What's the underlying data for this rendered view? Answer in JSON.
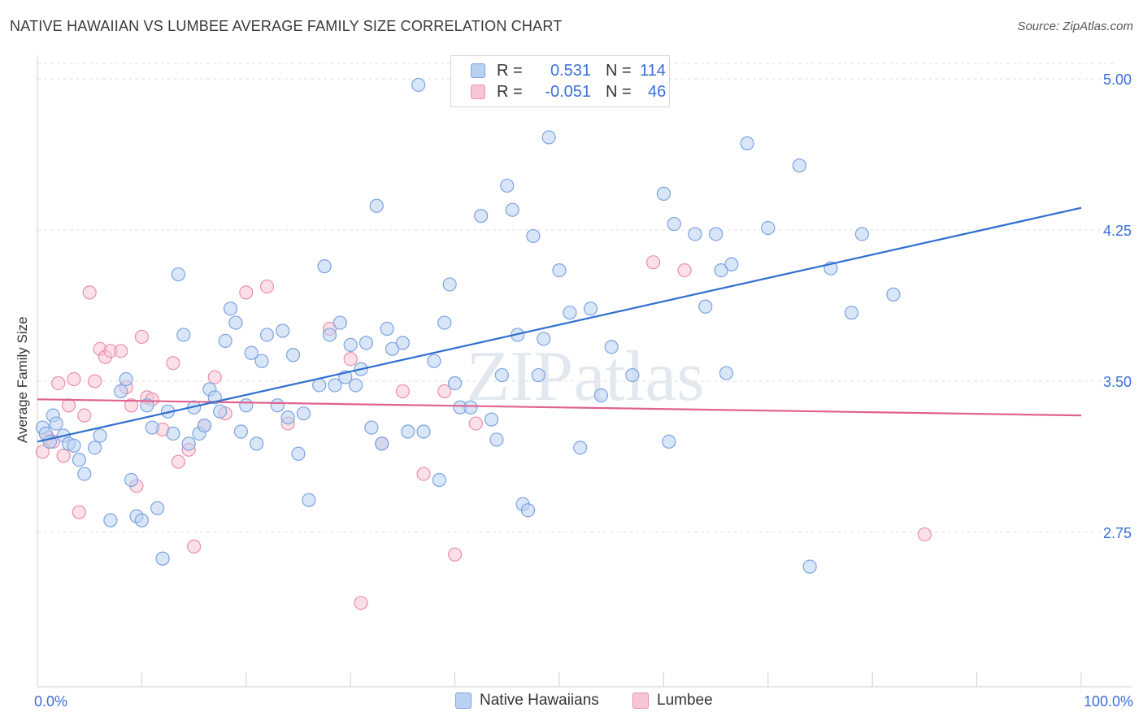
{
  "title": "NATIVE HAWAIIAN VS LUMBEE AVERAGE FAMILY SIZE CORRELATION CHART",
  "source": "Source: ZipAtlas.com",
  "watermark": "ZIPatlas",
  "legend": {
    "rows": [
      {
        "r_label": "R =",
        "r_value": "0.531",
        "n_label": "N =",
        "n_value": "114"
      },
      {
        "r_label": "R =",
        "r_value": "-0.051",
        "n_label": "N =",
        "n_value": "46"
      }
    ]
  },
  "colors": {
    "blue_fill": "#b9d1f3",
    "blue_stroke": "#7ba3e0",
    "blue_line": "#2f6fd0",
    "pink_fill": "#f7c6d5",
    "pink_stroke": "#ea8fae",
    "pink_line": "#e0628f",
    "axis_label": "#3b6fd8",
    "grid": "#e2e2e2"
  },
  "chart_data": {
    "type": "scatter",
    "title": "NATIVE HAWAIIAN VS LUMBEE AVERAGE FAMILY SIZE CORRELATION CHART",
    "xlabel": "",
    "ylabel": "Average Family Size",
    "x_tick_labels": [
      "0.0%",
      "100.0%"
    ],
    "y_tick_labels": [
      "2.75",
      "3.50",
      "4.25",
      "5.00"
    ],
    "y_ticks": [
      2.75,
      3.5,
      4.25,
      5.0
    ],
    "xlim": [
      0,
      100
    ],
    "ylim": [
      2.0,
      5.08
    ],
    "grid": "horizontal dashed",
    "legend_position": "top-center",
    "series": [
      {
        "name": "Native Hawaiians",
        "r": 0.531,
        "n": 114,
        "trend": {
          "x": [
            0,
            100
          ],
          "y": [
            3.2,
            4.36
          ]
        },
        "points": [
          [
            0.5,
            3.27
          ],
          [
            0.8,
            3.24
          ],
          [
            1.2,
            3.2
          ],
          [
            1.5,
            3.33
          ],
          [
            1.8,
            3.29
          ],
          [
            2.5,
            3.23
          ],
          [
            3,
            3.19
          ],
          [
            3.5,
            3.18
          ],
          [
            4,
            3.11
          ],
          [
            4.5,
            3.04
          ],
          [
            5.5,
            3.17
          ],
          [
            6,
            3.23
          ],
          [
            7,
            2.81
          ],
          [
            8,
            3.45
          ],
          [
            8.5,
            3.51
          ],
          [
            9,
            3.01
          ],
          [
            9.5,
            2.83
          ],
          [
            10,
            2.81
          ],
          [
            10.5,
            3.38
          ],
          [
            11,
            3.27
          ],
          [
            11.5,
            2.87
          ],
          [
            12,
            2.62
          ],
          [
            12.5,
            3.35
          ],
          [
            13,
            3.24
          ],
          [
            13.5,
            4.03
          ],
          [
            14,
            3.73
          ],
          [
            14.5,
            3.19
          ],
          [
            15,
            3.37
          ],
          [
            15.5,
            3.24
          ],
          [
            16,
            3.28
          ],
          [
            16.5,
            3.46
          ],
          [
            17,
            3.42
          ],
          [
            17.5,
            3.35
          ],
          [
            18,
            3.7
          ],
          [
            18.5,
            3.86
          ],
          [
            19,
            3.79
          ],
          [
            19.5,
            3.25
          ],
          [
            20,
            3.38
          ],
          [
            20.5,
            3.64
          ],
          [
            21,
            3.19
          ],
          [
            21.5,
            3.6
          ],
          [
            22,
            3.73
          ],
          [
            23,
            3.38
          ],
          [
            23.5,
            3.75
          ],
          [
            24,
            3.32
          ],
          [
            24.5,
            3.63
          ],
          [
            25,
            3.14
          ],
          [
            25.5,
            3.34
          ],
          [
            26,
            2.91
          ],
          [
            27,
            3.48
          ],
          [
            27.5,
            4.07
          ],
          [
            28,
            3.73
          ],
          [
            28.5,
            3.48
          ],
          [
            29,
            3.79
          ],
          [
            29.5,
            3.52
          ],
          [
            30,
            3.68
          ],
          [
            30.5,
            3.48
          ],
          [
            31,
            3.56
          ],
          [
            31.5,
            3.69
          ],
          [
            32,
            3.27
          ],
          [
            32.5,
            4.37
          ],
          [
            33,
            3.19
          ],
          [
            33.5,
            3.76
          ],
          [
            34,
            3.66
          ],
          [
            35,
            3.69
          ],
          [
            35.5,
            3.25
          ],
          [
            36.5,
            4.97
          ],
          [
            37,
            3.25
          ],
          [
            38,
            3.6
          ],
          [
            38.5,
            3.01
          ],
          [
            39,
            3.79
          ],
          [
            39.5,
            3.98
          ],
          [
            40,
            3.49
          ],
          [
            40.5,
            3.37
          ],
          [
            41.5,
            3.37
          ],
          [
            42.5,
            4.32
          ],
          [
            43.5,
            3.31
          ],
          [
            44,
            3.21
          ],
          [
            44.5,
            3.53
          ],
          [
            45,
            4.47
          ],
          [
            45.5,
            4.35
          ],
          [
            46,
            3.73
          ],
          [
            46.5,
            2.89
          ],
          [
            47,
            2.86
          ],
          [
            47.5,
            4.22
          ],
          [
            48,
            3.53
          ],
          [
            48.5,
            3.71
          ],
          [
            49,
            4.71
          ],
          [
            50,
            4.05
          ],
          [
            51,
            3.84
          ],
          [
            52,
            3.17
          ],
          [
            53,
            3.86
          ],
          [
            54,
            3.43
          ],
          [
            55,
            3.67
          ],
          [
            57,
            3.53
          ],
          [
            60,
            4.43
          ],
          [
            60.5,
            3.2
          ],
          [
            61,
            4.28
          ],
          [
            63,
            4.23
          ],
          [
            64,
            3.87
          ],
          [
            65,
            4.23
          ],
          [
            65.5,
            4.05
          ],
          [
            66,
            3.54
          ],
          [
            66.5,
            4.08
          ],
          [
            68,
            4.68
          ],
          [
            70,
            4.26
          ],
          [
            73,
            4.57
          ],
          [
            74,
            2.58
          ],
          [
            76,
            4.06
          ],
          [
            78,
            3.84
          ],
          [
            79,
            4.23
          ],
          [
            82,
            3.93
          ]
        ]
      },
      {
        "name": "Lumbee",
        "r": -0.051,
        "n": 46,
        "trend": {
          "x": [
            0,
            100
          ],
          "y": [
            3.41,
            3.33
          ]
        },
        "points": [
          [
            0.5,
            3.15
          ],
          [
            1,
            3.22
          ],
          [
            1.5,
            3.2
          ],
          [
            2,
            3.49
          ],
          [
            2.5,
            3.13
          ],
          [
            3,
            3.38
          ],
          [
            3.5,
            3.51
          ],
          [
            4,
            2.85
          ],
          [
            4.5,
            3.33
          ],
          [
            5,
            3.94
          ],
          [
            5.5,
            3.5
          ],
          [
            6,
            3.66
          ],
          [
            6.5,
            3.62
          ],
          [
            7,
            3.65
          ],
          [
            8,
            3.65
          ],
          [
            8.5,
            3.47
          ],
          [
            9,
            3.38
          ],
          [
            9.5,
            2.98
          ],
          [
            10,
            3.72
          ],
          [
            10.5,
            3.42
          ],
          [
            11,
            3.41
          ],
          [
            12,
            3.26
          ],
          [
            13,
            3.59
          ],
          [
            13.5,
            3.1
          ],
          [
            14.5,
            3.16
          ],
          [
            15,
            2.68
          ],
          [
            16,
            3.28
          ],
          [
            17,
            3.52
          ],
          [
            18,
            3.34
          ],
          [
            20,
            3.94
          ],
          [
            22,
            3.97
          ],
          [
            24,
            3.29
          ],
          [
            28,
            3.76
          ],
          [
            30,
            3.61
          ],
          [
            31,
            2.4
          ],
          [
            33,
            3.19
          ],
          [
            35,
            3.45
          ],
          [
            37,
            3.04
          ],
          [
            39,
            3.45
          ],
          [
            40,
            2.64
          ],
          [
            42,
            3.29
          ],
          [
            59,
            4.09
          ],
          [
            62,
            4.05
          ],
          [
            85,
            2.74
          ]
        ]
      }
    ]
  }
}
